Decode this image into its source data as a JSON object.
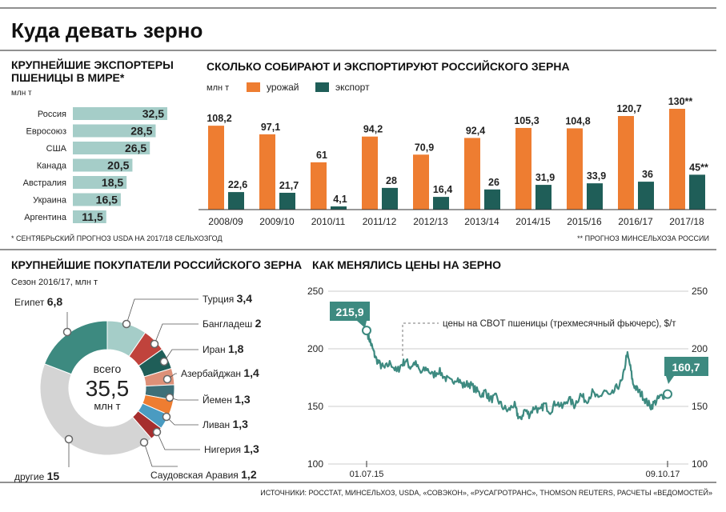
{
  "title": "Куда девать зерно",
  "sources": "ИСТОЧНИКИ: РОССТАТ, МИНСЕЛЬХОЗ, USDA, «СОВЭКОН», «РУСАГРОТРАНС», THOMSON REUTERS, РАСЧЕТЫ «ВЕДОМОСТЕЙ»",
  "colors": {
    "orange": "#ee7d31",
    "darkgreen": "#1f5e58",
    "lightteal": "#a5cdc8",
    "teal": "#3d8a80",
    "lightgray": "#d4d4d4"
  },
  "chart_data": [
    {
      "id": "exporters",
      "type": "bar",
      "orientation": "horizontal",
      "title": "КРУПНЕЙШИЕ ЭКСПОРТЕРЫ ПШЕНИЦЫ В МИРЕ*",
      "unit": "млн т",
      "categories": [
        "Россия",
        "Евросоюз",
        "США",
        "Канада",
        "Австралия",
        "Украина",
        "Аргентина"
      ],
      "values": [
        32.5,
        28.5,
        26.5,
        20.5,
        18.5,
        16.5,
        11.5
      ],
      "value_labels": [
        "32,5",
        "28,5",
        "26,5",
        "20,5",
        "18,5",
        "16,5",
        "11,5"
      ],
      "footnote": "* СЕНТЯБРЬСКИЙ ПРОГНОЗ USDA НА 2017/18 СЕЛЬХОЗГОД"
    },
    {
      "id": "production",
      "type": "bar",
      "title": "СКОЛЬКО СОБИРАЮТ И ЭКСПОРТИРУЮТ РОССИЙСКОГО ЗЕРНА",
      "unit": "млн т",
      "categories": [
        "2008/09",
        "2009/10",
        "2010/11",
        "2011/12",
        "2012/13",
        "2013/14",
        "2014/15",
        "2015/16",
        "2016/17",
        "2017/18"
      ],
      "series": [
        {
          "name": "урожай",
          "color": "#ee7d31",
          "values": [
            108.2,
            97.1,
            61,
            94.2,
            70.9,
            92.4,
            105.3,
            104.8,
            120.7,
            130
          ],
          "labels": [
            "108,2",
            "97,1",
            "61",
            "94,2",
            "70,9",
            "92,4",
            "105,3",
            "104,8",
            "120,7",
            "130**"
          ]
        },
        {
          "name": "экспорт",
          "color": "#1f5e58",
          "values": [
            22.6,
            21.7,
            4.1,
            28,
            16.4,
            26,
            31.9,
            33.9,
            36,
            45
          ],
          "labels": [
            "22,6",
            "21,7",
            "4,1",
            "28",
            "16,4",
            "26",
            "31,9",
            "33,9",
            "36",
            "45**"
          ]
        }
      ],
      "footnote": "** ПРОГНОЗ МИНСЕЛЬХОЗА РОССИИ"
    },
    {
      "id": "buyers",
      "type": "pie",
      "title": "КРУПНЕЙШИЕ ПОКУПАТЕЛИ РОССИЙСКОГО ЗЕРНА",
      "subtitle": "Сезон 2016/17, млн т",
      "center_label": "всего",
      "center_value": "35,5",
      "center_unit": "млн т",
      "slices": [
        {
          "name": "Турция",
          "value": 3.4,
          "label": "3,4",
          "color": "#a5cdc8"
        },
        {
          "name": "Бангладеш",
          "value": 2,
          "label": "2",
          "color": "#c0433c"
        },
        {
          "name": "Иран",
          "value": 1.8,
          "label": "1,8",
          "color": "#1f5e58"
        },
        {
          "name": "Азербайджан",
          "value": 1.4,
          "label": "1,4",
          "color": "#dd9078"
        },
        {
          "name": "Йемен",
          "value": 1.3,
          "label": "1,3",
          "color": "#3d6f78"
        },
        {
          "name": "Ливан",
          "value": 1.3,
          "label": "1,3",
          "color": "#ee7d31"
        },
        {
          "name": "Нигерия",
          "value": 1.3,
          "label": "1,3",
          "color": "#4a9bc1"
        },
        {
          "name": "Саудовская Аравия",
          "value": 1.2,
          "label": "1,2",
          "color": "#a62e2e"
        },
        {
          "name": "другие",
          "value": 15,
          "label": "15",
          "color": "#d4d4d4"
        },
        {
          "name": "Египет",
          "value": 6.8,
          "label": "6,8",
          "color": "#3d8a80"
        }
      ]
    },
    {
      "id": "prices",
      "type": "line",
      "title": "КАК МЕНЯЛИСЬ ЦЕНЫ НА ЗЕРНО",
      "series_name": "цены на CBOT пшеницы (трехмесячный фьючерс), $/т",
      "ylim": [
        100,
        250
      ],
      "yticks": [
        100,
        150,
        200,
        250
      ],
      "x_start_label": "01.07.15",
      "x_end_label": "09.10.17",
      "start_value_label": "215,9",
      "end_value_label": "160,7",
      "points": [
        [
          0,
          215.9
        ],
        [
          0.01,
          208
        ],
        [
          0.02,
          200
        ],
        [
          0.03,
          192
        ],
        [
          0.045,
          186
        ],
        [
          0.06,
          183
        ],
        [
          0.08,
          188
        ],
        [
          0.1,
          180
        ],
        [
          0.115,
          186
        ],
        [
          0.13,
          190
        ],
        [
          0.145,
          184
        ],
        [
          0.16,
          188
        ],
        [
          0.18,
          179
        ],
        [
          0.2,
          183
        ],
        [
          0.22,
          177
        ],
        [
          0.24,
          181
        ],
        [
          0.26,
          175
        ],
        [
          0.28,
          171
        ],
        [
          0.3,
          175
        ],
        [
          0.32,
          168
        ],
        [
          0.34,
          170
        ],
        [
          0.36,
          165
        ],
        [
          0.38,
          160
        ],
        [
          0.395,
          163
        ],
        [
          0.41,
          156
        ],
        [
          0.43,
          158
        ],
        [
          0.45,
          150
        ],
        [
          0.47,
          146
        ],
        [
          0.49,
          152
        ],
        [
          0.5,
          144
        ],
        [
          0.51,
          138
        ],
        [
          0.525,
          147
        ],
        [
          0.54,
          143
        ],
        [
          0.56,
          150
        ],
        [
          0.575,
          145
        ],
        [
          0.59,
          152
        ],
        [
          0.61,
          146
        ],
        [
          0.63,
          154
        ],
        [
          0.65,
          149
        ],
        [
          0.67,
          157
        ],
        [
          0.69,
          151
        ],
        [
          0.71,
          160
        ],
        [
          0.73,
          155
        ],
        [
          0.75,
          162
        ],
        [
          0.77,
          156
        ],
        [
          0.79,
          164
        ],
        [
          0.81,
          158
        ],
        [
          0.83,
          166
        ],
        [
          0.85,
          172
        ],
        [
          0.865,
          196
        ],
        [
          0.875,
          186
        ],
        [
          0.885,
          170
        ],
        [
          0.9,
          164
        ],
        [
          0.915,
          160
        ],
        [
          0.93,
          154
        ],
        [
          0.945,
          150
        ],
        [
          0.96,
          154
        ],
        [
          0.975,
          158
        ],
        [
          0.99,
          160
        ],
        [
          1,
          160.7
        ]
      ]
    }
  ]
}
